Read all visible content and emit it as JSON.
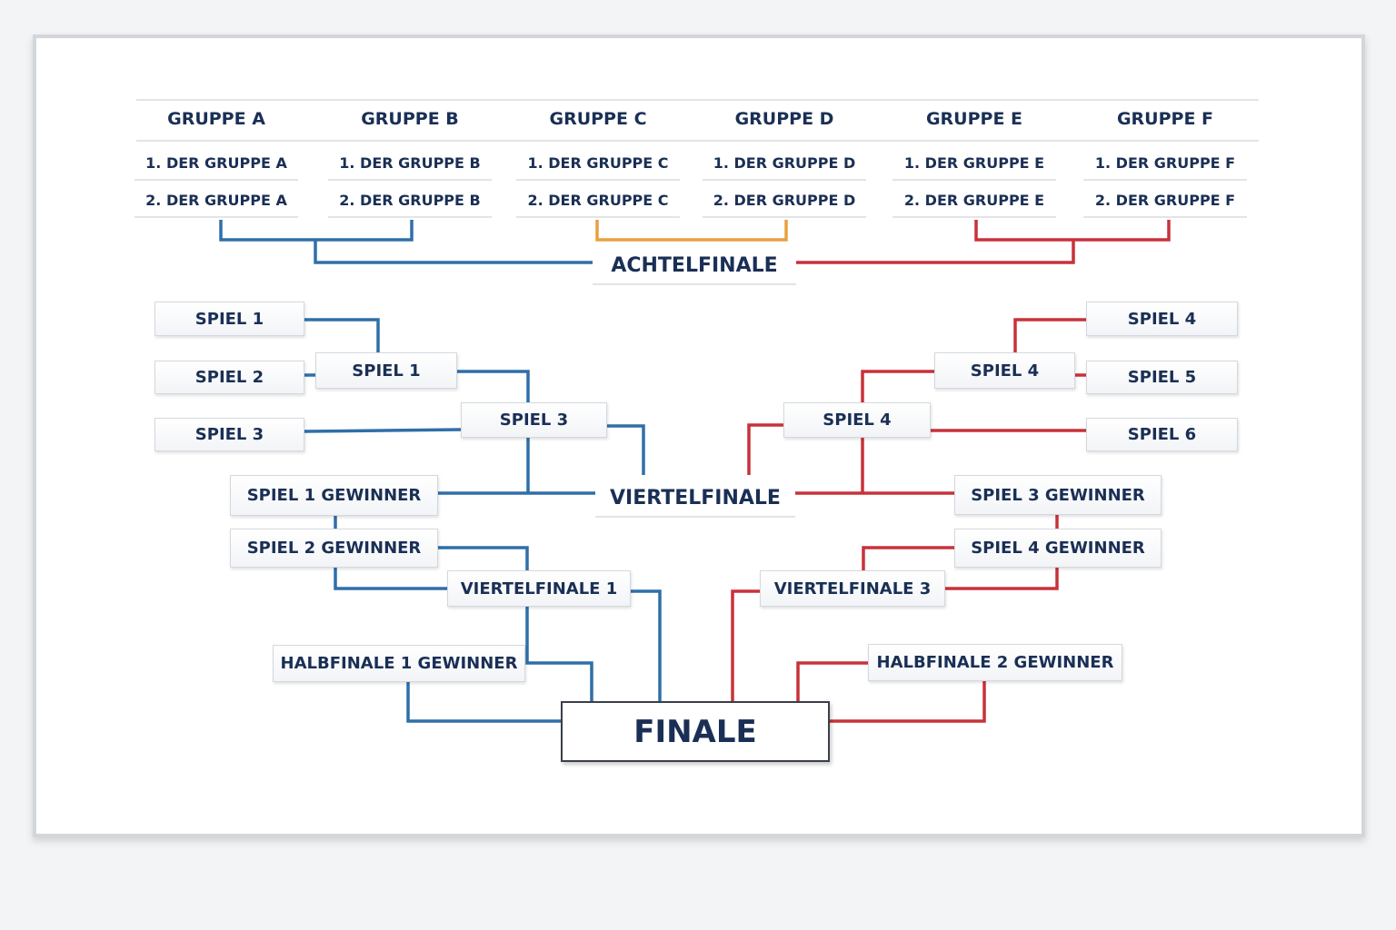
{
  "colors": {
    "left": "#2f6fa8",
    "center": "#e8a040",
    "right": "#c8323a",
    "text": "#1a2f55"
  },
  "groups": [
    {
      "name": "GRUPPE A",
      "first": "1. DER GRUPPE A",
      "second": "2. DER GRUPPE A"
    },
    {
      "name": "GRUPPE B",
      "first": "1. DER GRUPPE B",
      "second": "2. DER GRUPPE B"
    },
    {
      "name": "GRUPPE C",
      "first": "1. DER GRUPPE C",
      "second": "2. DER GRUPPE C"
    },
    {
      "name": "GRUPPE D",
      "first": "1. DER GRUPPE D",
      "second": "2. DER GRUPPE D"
    },
    {
      "name": "GRUPPE E",
      "first": "1. DER GRUPPE E",
      "second": "2. DER GRUPPE E"
    },
    {
      "name": "GRUPPE F",
      "first": "1. DER GRUPPE F",
      "second": "2. DER GRUPPE F"
    }
  ],
  "stages": {
    "round_of_16": "ACHTELFINALE",
    "quarterfinal": "VIERTELFINALE",
    "final": "FINALE"
  },
  "left": {
    "r1": [
      "SPIEL 1",
      "SPIEL 2",
      "SPIEL 3"
    ],
    "r2": "SPIEL 1",
    "r3": "SPIEL 3",
    "w1": "SPIEL 1 GEWINNER",
    "w2": "SPIEL 2 GEWINNER",
    "qf": "VIERTELFINALE 1",
    "sf": "HALBFINALE 1 GEWINNER"
  },
  "right": {
    "r1": [
      "SPIEL 4",
      "SPIEL 5",
      "SPIEL 6"
    ],
    "r2": "SPIEL 4",
    "r3": "SPIEL 4",
    "w1": "SPIEL 3 GEWINNER",
    "w2": "SPIEL 4 GEWINNER",
    "qf": "VIERTELFINALE 3",
    "sf": "HALBFINALE 2 GEWINNER"
  }
}
